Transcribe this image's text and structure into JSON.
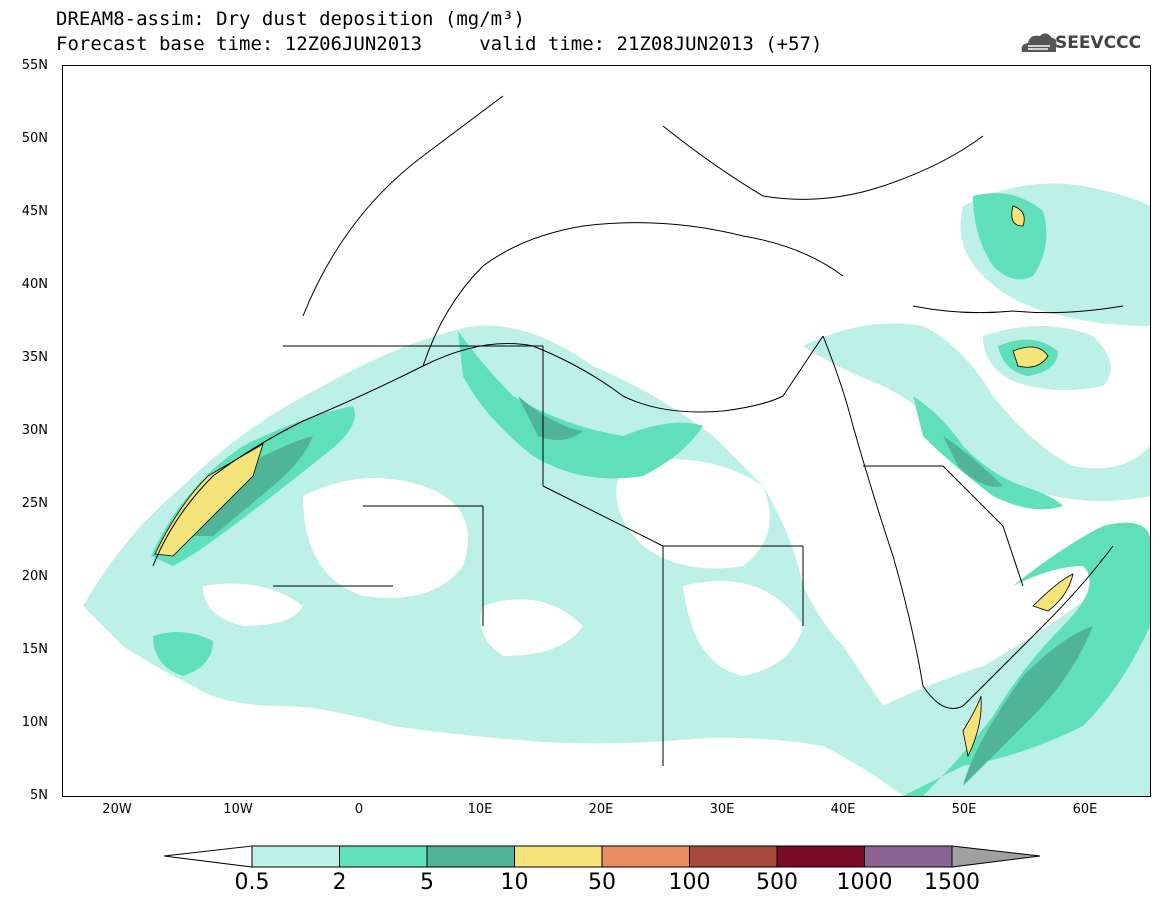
{
  "title": {
    "line1": "DREAM8-assim: Dry dust deposition (mg/m³)",
    "line2": "Forecast base time: 12Z06JUN2013     valid time: 21Z08JUN2013 (+57)"
  },
  "logo": {
    "text": "SEEVCCC",
    "icon": "cloud-logo-icon"
  },
  "axes": {
    "y_ticks": [
      "55N",
      "50N",
      "45N",
      "40N",
      "35N",
      "30N",
      "25N",
      "20N",
      "15N",
      "10N",
      "5N"
    ],
    "x_ticks": [
      "20W",
      "10W",
      "0",
      "10E",
      "20E",
      "30E",
      "40E",
      "50E",
      "60E"
    ],
    "lon_range": [
      -25,
      65
    ],
    "lat_range": [
      5,
      55
    ]
  },
  "colorbar": {
    "labels": [
      "0.5",
      "2",
      "5",
      "10",
      "50",
      "100",
      "500",
      "1000",
      "1500"
    ],
    "colors": [
      "#bdf0e6",
      "#5fe0b9",
      "#4fb596",
      "#f5e47a",
      "#ea8b63",
      "#a84a3c",
      "#7a0b26",
      "#8b6494",
      "#a0a0a0"
    ]
  }
}
